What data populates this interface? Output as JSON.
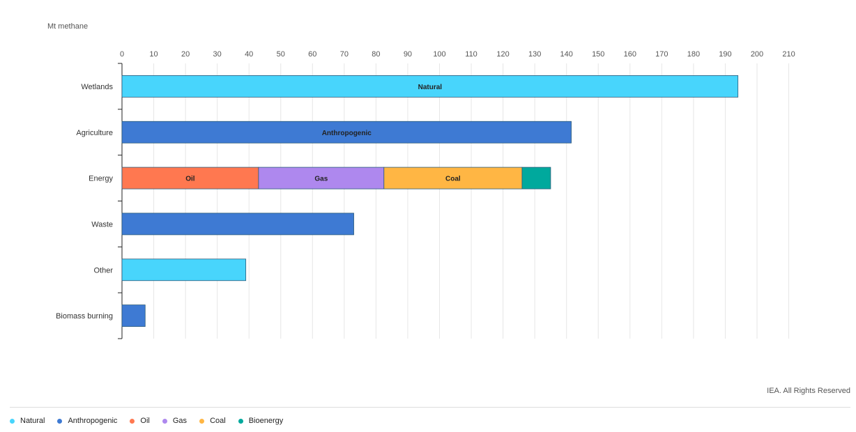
{
  "unit_label": "Mt methane",
  "credit": "IEA. All Rights Reserved",
  "colors": {
    "Natural": "#48d5fc",
    "Anthropogenic": "#3e7ad3",
    "Oil": "#ff7850",
    "Gas": "#ae88ee",
    "Coal": "#ffb644",
    "Bioenergy": "#00a99d"
  },
  "legend": [
    {
      "name": "Natural",
      "color": "#48d5fc"
    },
    {
      "name": "Anthropogenic",
      "color": "#3e7ad3"
    },
    {
      "name": "Oil",
      "color": "#ff7850"
    },
    {
      "name": "Gas",
      "color": "#ae88ee"
    },
    {
      "name": "Coal",
      "color": "#ffb644"
    },
    {
      "name": "Bioenergy",
      "color": "#00a99d"
    }
  ],
  "chart_data": {
    "type": "bar",
    "orientation": "horizontal",
    "stacked": true,
    "xlabel": "Mt methane",
    "xlim": [
      0,
      210
    ],
    "xticks": [
      0,
      10,
      20,
      30,
      40,
      50,
      60,
      70,
      80,
      90,
      100,
      110,
      120,
      130,
      140,
      150,
      160,
      170,
      180,
      190,
      200,
      210
    ],
    "grid": true,
    "legend_position": "bottom-left",
    "categories": [
      "Wetlands",
      "Agriculture",
      "Energy",
      "Waste",
      "Other",
      "Biomass burning"
    ],
    "bars": [
      {
        "category": "Wetlands",
        "segments": [
          {
            "series": "Natural",
            "value": 194,
            "label": "Natural"
          }
        ]
      },
      {
        "category": "Agriculture",
        "segments": [
          {
            "series": "Anthropogenic",
            "value": 141.5,
            "label": "Anthropogenic"
          }
        ]
      },
      {
        "category": "Energy",
        "segments": [
          {
            "series": "Oil",
            "value": 43,
            "label": "Oil"
          },
          {
            "series": "Gas",
            "value": 39.5,
            "label": "Gas"
          },
          {
            "series": "Coal",
            "value": 43.5,
            "label": "Coal"
          },
          {
            "series": "Bioenergy",
            "value": 9,
            "label": ""
          }
        ]
      },
      {
        "category": "Waste",
        "segments": [
          {
            "series": "Anthropogenic",
            "value": 73,
            "label": ""
          }
        ]
      },
      {
        "category": "Other",
        "segments": [
          {
            "series": "Natural",
            "value": 39,
            "label": ""
          }
        ]
      },
      {
        "category": "Biomass burning",
        "segments": [
          {
            "series": "Anthropogenic",
            "value": 7.3,
            "label": ""
          }
        ]
      }
    ]
  }
}
